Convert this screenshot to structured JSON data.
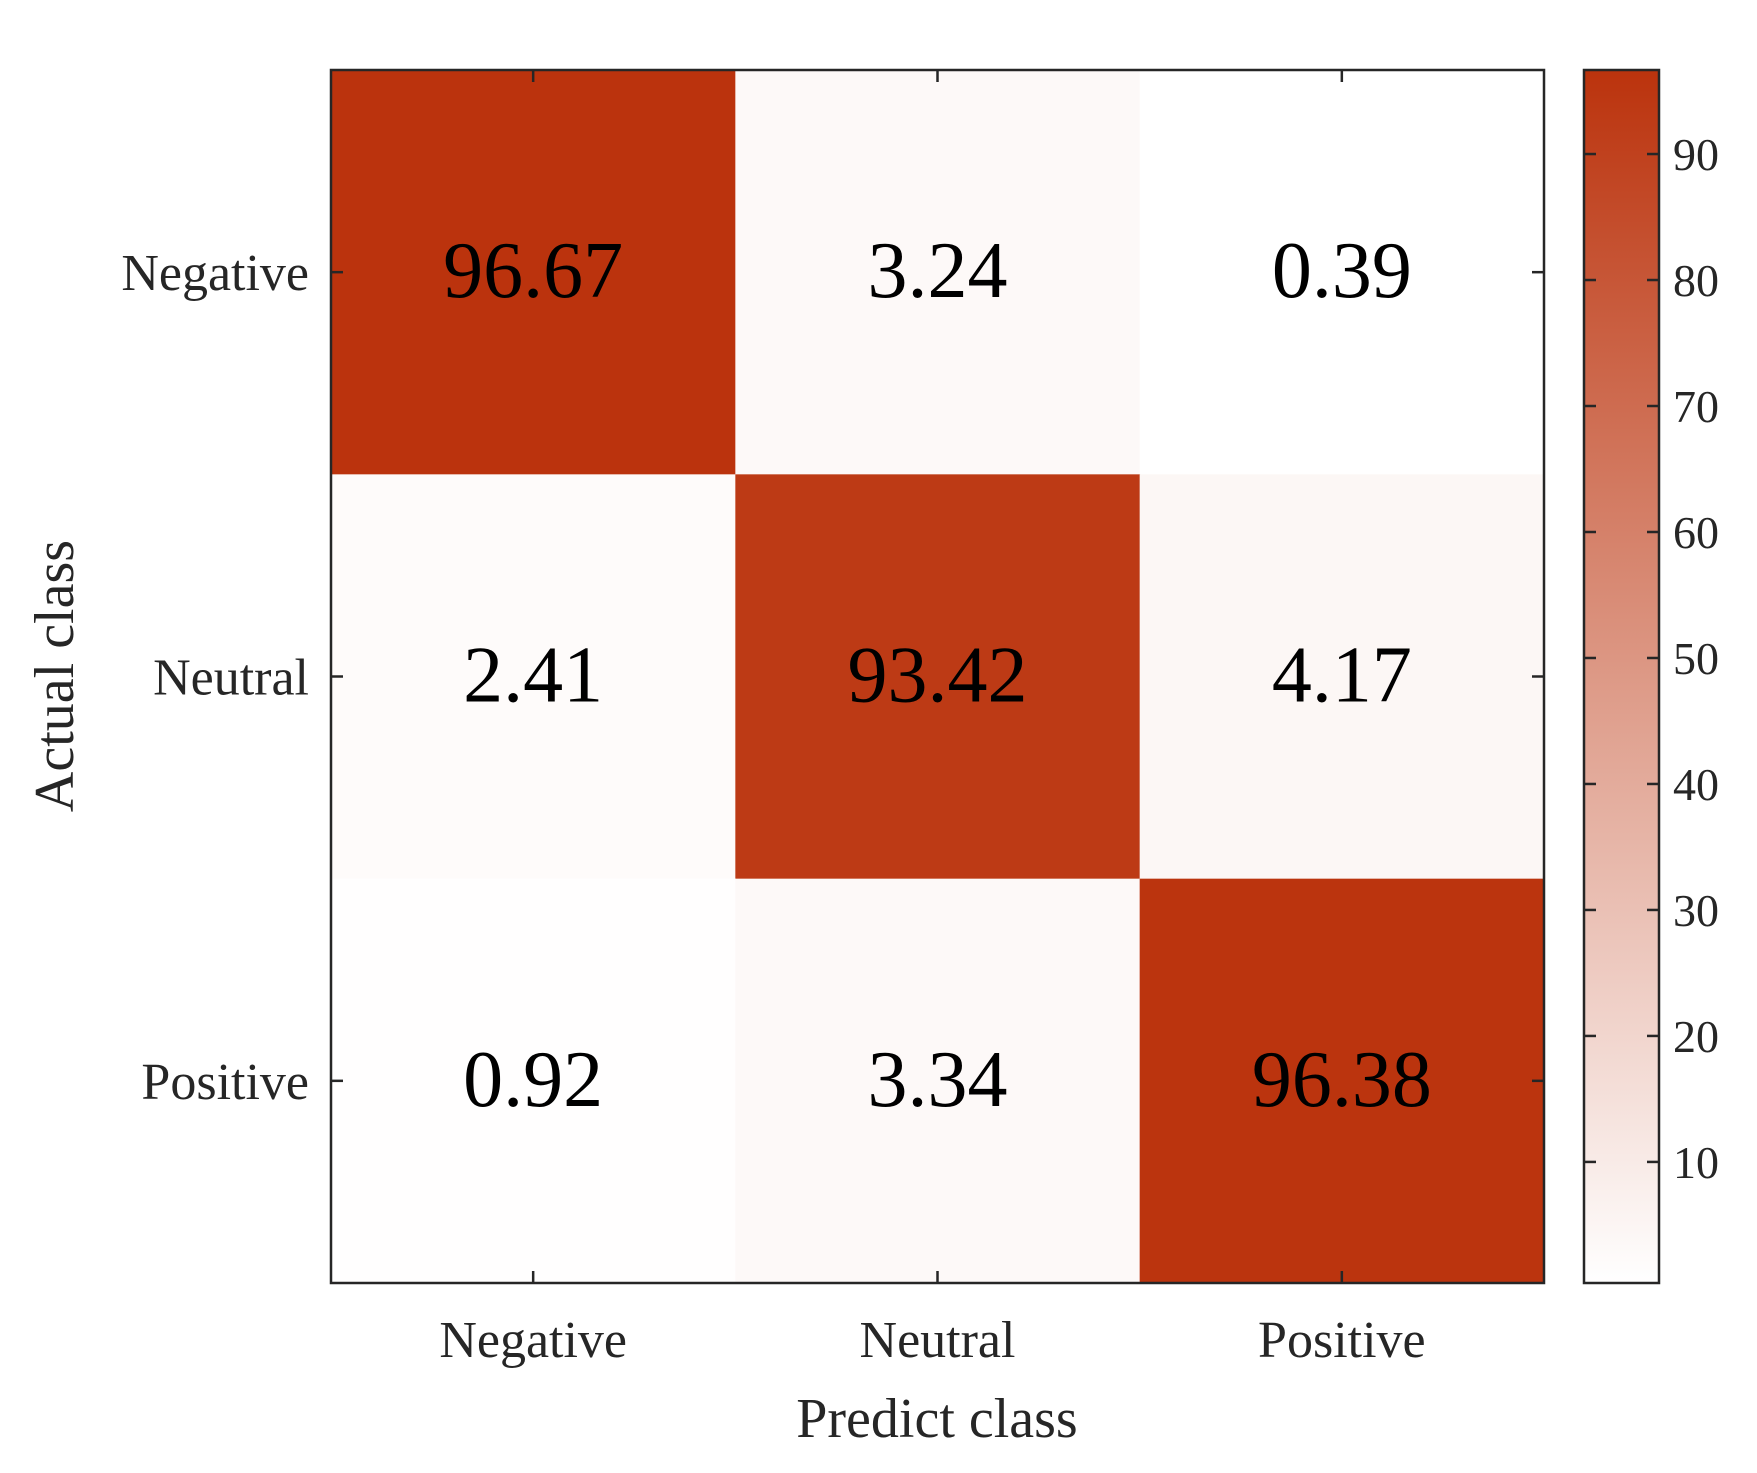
{
  "chart_data": {
    "type": "heatmap",
    "title": "",
    "xlabel": "Predict class",
    "ylabel": "Actual class",
    "x_categories": [
      "Negative",
      "Neutral",
      "Positive"
    ],
    "y_categories": [
      "Negative",
      "Neutral",
      "Positive"
    ],
    "values": [
      [
        96.67,
        3.24,
        0.39
      ],
      [
        2.41,
        93.42,
        4.17
      ],
      [
        0.92,
        3.34,
        96.38
      ]
    ],
    "cell_labels": [
      [
        "96.67",
        "3.24",
        "0.39"
      ],
      [
        "2.41",
        "93.42",
        "4.17"
      ],
      [
        "0.92",
        "3.34",
        "96.38"
      ]
    ],
    "colorbar": {
      "range": [
        0.39,
        96.67
      ],
      "ticks": [
        10,
        20,
        30,
        40,
        50,
        60,
        70,
        80,
        90
      ],
      "tick_labels": [
        "10",
        "20",
        "30",
        "40",
        "50",
        "60",
        "70",
        "80",
        "90"
      ],
      "color_low": "#ffffff",
      "color_high": "#bb330d"
    },
    "grid": false
  },
  "colors": {
    "axis": "#262626",
    "text": "#000000",
    "tick_text": "#262626"
  }
}
